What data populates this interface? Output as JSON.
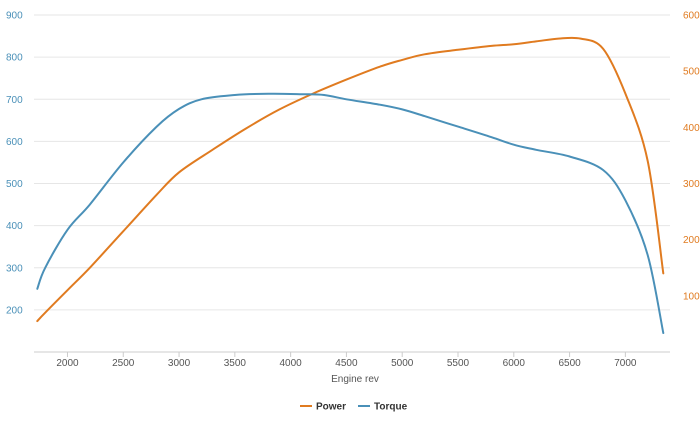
{
  "chart_data": {
    "type": "line",
    "xlabel": "Engine rev",
    "xlim": [
      1700,
      7400
    ],
    "x_ticks": [
      "2000",
      "2500",
      "3000",
      "3500",
      "4000",
      "4500",
      "5000",
      "5500",
      "6000",
      "6500",
      "7000"
    ],
    "y_left": {
      "ylim": [
        100,
        900
      ],
      "ticks": [
        "200",
        "300",
        "400",
        "500",
        "600",
        "700",
        "800",
        "900"
      ],
      "color": "#4a90b8"
    },
    "y_right": {
      "ylim": [
        0,
        600
      ],
      "ticks": [
        "100",
        "200",
        "300",
        "400",
        "500",
        "600"
      ],
      "color": "#e07b20"
    },
    "grid": "horizontal",
    "legend_position": "bottom-center",
    "series": [
      {
        "name": "Power",
        "axis": "right",
        "color": "#e07b20",
        "x": [
          1730,
          1800,
          2000,
          2200,
          2500,
          2800,
          3000,
          3300,
          3600,
          3900,
          4200,
          4500,
          4800,
          5000,
          5200,
          5500,
          5800,
          6000,
          6200,
          6400,
          6600,
          6800,
          7000,
          7200,
          7340
        ],
        "y": [
          55,
          70,
          110,
          150,
          215,
          280,
          320,
          360,
          398,
          432,
          460,
          485,
          508,
          520,
          530,
          538,
          545,
          548,
          553,
          558,
          558,
          540,
          460,
          340,
          140
        ]
      },
      {
        "name": "Torque",
        "axis": "left",
        "color": "#4a90b8",
        "x": [
          1730,
          1800,
          2000,
          2200,
          2500,
          2800,
          3000,
          3200,
          3500,
          3800,
          4100,
          4300,
          4500,
          4800,
          5000,
          5200,
          5500,
          5800,
          6000,
          6200,
          6500,
          6800,
          7000,
          7200,
          7340
        ],
        "y": [
          250,
          300,
          390,
          450,
          550,
          635,
          677,
          700,
          710,
          713,
          712,
          710,
          700,
          687,
          676,
          660,
          635,
          610,
          592,
          580,
          564,
          532,
          460,
          330,
          145
        ]
      }
    ]
  }
}
